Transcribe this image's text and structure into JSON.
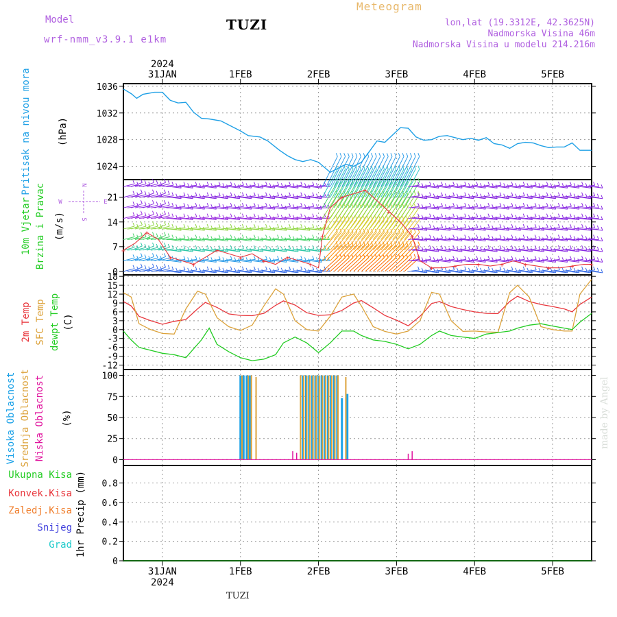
{
  "header": {
    "model_label": "Model",
    "model_name": "wrf-nmm_v3.9.1 e1km",
    "station": "TUZI",
    "product": "Meteogram",
    "lonlat": "lon,lat (19.3312E, 42.3625N)",
    "elevation": "Nadmorska Visina 46m",
    "model_elevation": "Nadmorska Visina u modelu 214.216m",
    "footer_station": "TUZI",
    "credit": "made by Angel"
  },
  "colors": {
    "pressure": "#1fa0e6",
    "t2m": "#e8363c",
    "sfc": "#dca23a",
    "dewpt": "#22cc22",
    "high_cloud": "#1ca2e8",
    "mid_cloud": "#dca23a",
    "low_cloud": "#e0149e",
    "grid": "#999999"
  },
  "time_axis": {
    "year": "2024",
    "top_labels": [
      "31JAN",
      "1FEB",
      "2FEB",
      "3FEB",
      "4FEB",
      "5FEB"
    ],
    "bottom_labels": [
      "31JAN",
      "1FEB",
      "2FEB",
      "3FEB",
      "4FEB",
      "5FEB"
    ],
    "range_days": [
      -0.5,
      5.5
    ]
  },
  "chart_data": [
    {
      "type": "line",
      "ylabel": [
        "Pritisak na nivou mora",
        "(hPa)"
      ],
      "yticks": [
        1024,
        1028,
        1032,
        1036
      ],
      "ylim": [
        1022,
        1036.4
      ],
      "grid": true,
      "series": [
        {
          "color_key": "pressure",
          "x": [
            -0.5,
            -0.4,
            -0.33,
            -0.25,
            -0.1,
            0.0,
            0.05,
            0.1,
            0.2,
            0.3,
            0.4,
            0.5,
            0.6,
            0.75,
            0.85,
            1.0,
            1.1,
            1.25,
            1.35,
            1.5,
            1.6,
            1.7,
            1.8,
            1.9,
            2.0,
            2.08,
            2.15,
            2.25,
            2.35,
            2.45,
            2.55,
            2.65,
            2.75,
            2.85,
            2.95,
            3.05,
            3.15,
            3.25,
            3.35,
            3.45,
            3.55,
            3.65,
            3.75,
            3.85,
            3.95,
            4.05,
            4.15,
            4.25,
            4.35,
            4.45,
            4.55,
            4.65,
            4.75,
            4.85,
            4.95,
            5.05,
            5.15,
            5.25,
            5.35,
            5.5
          ],
          "y": [
            1035.6,
            1034.9,
            1034.2,
            1034.8,
            1035.1,
            1035.1,
            1034.5,
            1033.9,
            1033.5,
            1033.6,
            1032.1,
            1031.2,
            1031.1,
            1030.8,
            1030.2,
            1029.3,
            1028.6,
            1028.4,
            1027.8,
            1026.4,
            1025.6,
            1025.0,
            1024.7,
            1025.0,
            1024.6,
            1023.8,
            1023.1,
            1023.7,
            1024.3,
            1024.0,
            1024.6,
            1026.2,
            1027.8,
            1027.6,
            1028.7,
            1029.8,
            1029.7,
            1028.4,
            1027.9,
            1028.0,
            1028.5,
            1028.6,
            1028.3,
            1028.0,
            1028.2,
            1027.9,
            1028.3,
            1027.4,
            1027.2,
            1026.7,
            1027.4,
            1027.6,
            1027.5,
            1027.1,
            1026.8,
            1026.9,
            1026.9,
            1027.5,
            1026.4,
            1026.4
          ]
        }
      ]
    },
    {
      "type": "wind-barbs",
      "ylabel": [
        "10m Vjetar",
        "Brzina i Pravac",
        "(m/s)"
      ],
      "compass": [
        "N",
        "W",
        "E",
        "S"
      ],
      "yticks": [
        0,
        7,
        14,
        21
      ],
      "ylim": [
        -1,
        26
      ],
      "grid": true,
      "series": [
        {
          "name": "windspeed",
          "color_key": "t2m",
          "x": [
            -0.5,
            -0.35,
            -0.2,
            -0.05,
            0.1,
            0.25,
            0.4,
            0.55,
            0.7,
            0.85,
            1.0,
            1.15,
            1.3,
            1.45,
            1.6,
            1.75,
            1.9,
            2.0,
            2.05,
            2.15,
            2.3,
            2.45,
            2.6,
            2.75,
            2.9,
            3.05,
            3.2,
            3.3,
            3.45,
            3.6,
            3.75,
            3.9,
            4.05,
            4.2,
            4.35,
            4.5,
            4.65,
            4.8,
            4.95,
            5.1,
            5.25,
            5.4,
            5.5
          ],
          "y": [
            6,
            8,
            11,
            9,
            4,
            3,
            2,
            4,
            6,
            5,
            4,
            5,
            3,
            2,
            4,
            3,
            2,
            1,
            10,
            18,
            21,
            22,
            23,
            20,
            17,
            14,
            10,
            3,
            1,
            1,
            1.5,
            2,
            2,
            1.5,
            2,
            3,
            2,
            1.5,
            1,
            1,
            1.5,
            2,
            2
          ]
        }
      ]
    },
    {
      "type": "line",
      "ylabel": [
        "2m Temp",
        "SFC Temp",
        "dewpt Temp",
        "(C)"
      ],
      "yticks": [
        -12,
        -9,
        -6,
        -3,
        0,
        3,
        6,
        9,
        12,
        15,
        18
      ],
      "ylim": [
        -13.5,
        18.5
      ],
      "grid": true,
      "series": [
        {
          "name": "2m Temp",
          "color_key": "t2m",
          "x": [
            -0.5,
            -0.4,
            -0.3,
            -0.15,
            0.0,
            0.15,
            0.3,
            0.45,
            0.55,
            0.7,
            0.85,
            1.0,
            1.15,
            1.3,
            1.45,
            1.55,
            1.7,
            1.85,
            2.0,
            2.15,
            2.3,
            2.45,
            2.55,
            2.7,
            2.85,
            3.0,
            3.15,
            3.3,
            3.45,
            3.55,
            3.7,
            3.85,
            4.0,
            4.15,
            4.3,
            4.45,
            4.55,
            4.7,
            4.85,
            5.0,
            5.15,
            5.25,
            5.35,
            5.5
          ],
          "y": [
            9.5,
            8,
            4.5,
            3,
            1.8,
            2.8,
            3.4,
            7,
            9.2,
            7.5,
            5.3,
            4.8,
            4.7,
            5.5,
            8.2,
            9.7,
            8.3,
            5.7,
            4.8,
            5,
            6.5,
            9,
            9.8,
            7.4,
            4.8,
            3.2,
            1.3,
            4.5,
            8.8,
            9.5,
            7.8,
            6.8,
            6,
            5.5,
            5.4,
            9.5,
            11.3,
            9.5,
            8.5,
            7.8,
            7,
            6,
            8.5,
            11
          ]
        },
        {
          "name": "SFC Temp",
          "color_key": "sfc",
          "x": [
            -0.5,
            -0.4,
            -0.3,
            -0.15,
            0.0,
            0.15,
            0.3,
            0.45,
            0.55,
            0.7,
            0.85,
            1.0,
            1.15,
            1.3,
            1.45,
            1.55,
            1.7,
            1.85,
            2.0,
            2.15,
            2.3,
            2.45,
            2.55,
            2.7,
            2.85,
            3.0,
            3.15,
            3.3,
            3.45,
            3.55,
            3.7,
            3.85,
            4.0,
            4.15,
            4.3,
            4.45,
            4.55,
            4.7,
            4.85,
            5.0,
            5.15,
            5.25,
            5.35,
            5.5
          ],
          "y": [
            12.5,
            11,
            2,
            0,
            -1.3,
            -1.5,
            7,
            13,
            12,
            4,
            1,
            -0.3,
            1.5,
            8,
            13.8,
            12,
            3,
            0,
            -0.5,
            4.5,
            11,
            12,
            8,
            1,
            -0.6,
            -1.5,
            -0.5,
            3,
            12.6,
            12,
            3,
            -0.6,
            -0.5,
            -0.8,
            -0.9,
            12.5,
            15,
            11,
            1,
            0,
            -0.5,
            -0.5,
            12,
            17
          ]
        },
        {
          "name": "dewpt Temp",
          "color_key": "dewpt",
          "x": [
            -0.5,
            -0.4,
            -0.3,
            -0.15,
            0.0,
            0.15,
            0.3,
            0.4,
            0.5,
            0.6,
            0.7,
            0.85,
            1.0,
            1.15,
            1.3,
            1.45,
            1.55,
            1.7,
            1.85,
            2.0,
            2.15,
            2.3,
            2.45,
            2.55,
            2.7,
            2.85,
            3.0,
            3.15,
            3.3,
            3.45,
            3.55,
            3.7,
            3.85,
            4.0,
            4.15,
            4.3,
            4.45,
            4.55,
            4.7,
            4.85,
            5.0,
            5.15,
            5.25,
            5.35,
            5.5
          ],
          "y": [
            -0.5,
            -3.5,
            -6,
            -7,
            -8,
            -8.5,
            -9.5,
            -6.5,
            -3.5,
            0.5,
            -5,
            -7.5,
            -9.5,
            -10.5,
            -10,
            -8.5,
            -4.5,
            -2.5,
            -4.5,
            -7.8,
            -4.5,
            -0.5,
            -0.5,
            -2,
            -3.5,
            -4,
            -5,
            -6.5,
            -5,
            -2,
            -0.5,
            -2,
            -2.5,
            -3,
            -1.5,
            -1,
            -0.5,
            0.5,
            1.5,
            2,
            1.2,
            0.5,
            0,
            2.5,
            5.5
          ]
        }
      ]
    },
    {
      "type": "bar",
      "ylabel": [
        "Visoka Oblacnost",
        "Srednja Oblacnost",
        "Niska Oblacnost",
        "(%)"
      ],
      "yticks": [
        0,
        25,
        50,
        75,
        100
      ],
      "ylim": [
        -7,
        107
      ],
      "grid": true,
      "series": [
        {
          "name": "Visoka Oblacnost",
          "color_key": "high_cloud",
          "x": [
            1.0,
            1.04,
            1.08,
            1.12,
            1.8,
            1.84,
            1.88,
            1.92,
            1.96,
            2.0,
            2.04,
            2.08,
            2.12,
            2.16,
            2.2,
            2.24,
            2.3,
            2.37
          ],
          "y": [
            100,
            100,
            100,
            100,
            100,
            100,
            100,
            100,
            100,
            100,
            100,
            100,
            100,
            100,
            100,
            100,
            73,
            78
          ]
        },
        {
          "name": "Srednja Oblacnost",
          "color_key": "mid_cloud",
          "x": [
            1.02,
            1.1,
            1.14,
            1.2,
            1.77,
            1.81,
            1.85,
            1.89,
            1.93,
            1.97,
            2.01,
            2.05,
            2.09,
            2.13,
            2.17,
            2.21,
            2.25,
            2.35
          ],
          "y": [
            100,
            100,
            100,
            98,
            100,
            100,
            100,
            100,
            100,
            100,
            100,
            100,
            100,
            100,
            100,
            100,
            100,
            98
          ]
        },
        {
          "name": "Niska Oblacnost",
          "color_key": "low_cloud",
          "x": [
            1.67,
            1.72,
            3.15,
            3.2
          ],
          "y": [
            10,
            8,
            7,
            10
          ]
        }
      ]
    },
    {
      "type": "bar",
      "ylabel": [
        "1hr Precip (mm)"
      ],
      "legend": [
        "Ukupna Kisa",
        "Konvek.Kisa",
        "Zaledj.Kisa",
        "Snijeg",
        "Grad"
      ],
      "legend_colors": [
        "#22cc22",
        "#e8363c",
        "#f08030",
        "#4444dd",
        "#22cccc"
      ],
      "yticks": [
        0,
        0.2,
        0.4,
        0.6,
        0.8
      ],
      "ylim": [
        0,
        0.98
      ],
      "grid": true,
      "series": [
        {
          "name": "Ukupna Kisa",
          "x": [
            -0.5,
            5.5
          ],
          "y": [
            0,
            0
          ]
        }
      ]
    }
  ]
}
